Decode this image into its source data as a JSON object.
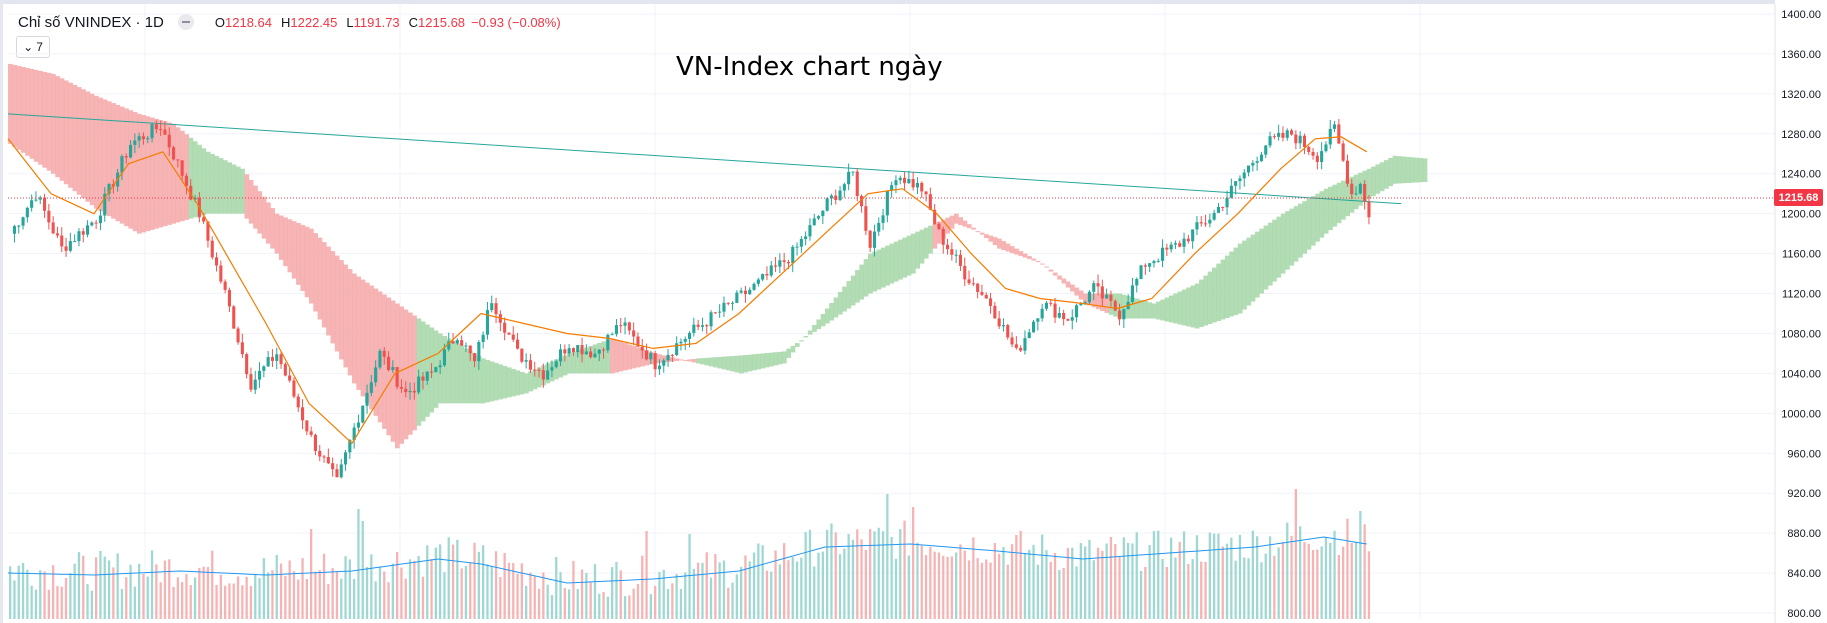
{
  "header": {
    "symbol_title": "Chỉ số VNINDEX · 1D",
    "open_label": "O",
    "open_value": "1218.64",
    "high_label": "H",
    "high_value": "1222.45",
    "low_label": "L",
    "low_value": "1191.73",
    "close_label": "C",
    "close_value": "1215.68",
    "change": "−0.93 (−0.08%)",
    "indicator_count": "7"
  },
  "colors": {
    "up": "#26a69a",
    "down": "#ef5350",
    "kumo_bull": "#a5d6a7",
    "kumo_bear": "#f4a7a7",
    "ma": "#f57c00",
    "trendline": "#26a69a",
    "volume_ma": "#2196f3"
  },
  "chart_data": {
    "type": "candlestick",
    "title": "VN-Index chart ngày",
    "ylim": [
      795,
      1410
    ],
    "y_ticks": [
      "1400.00",
      "1360.00",
      "1320.00",
      "1280.00",
      "1240.00",
      "1200.00",
      "1160.00",
      "1120.00",
      "1080.00",
      "1040.00",
      "1000.00",
      "960.00",
      "920.00",
      "880.00",
      "840.00",
      "800.00"
    ],
    "last_price": "1215.68",
    "num_bars": 258,
    "price_path": [
      [
        0,
        1180
      ],
      [
        6,
        1220
      ],
      [
        12,
        1165
      ],
      [
        20,
        1195
      ],
      [
        28,
        1270
      ],
      [
        35,
        1288
      ],
      [
        40,
        1240
      ],
      [
        44,
        1200
      ],
      [
        50,
        1120
      ],
      [
        56,
        1030
      ],
      [
        62,
        1060
      ],
      [
        70,
        975
      ],
      [
        76,
        930
      ],
      [
        80,
        985
      ],
      [
        86,
        1060
      ],
      [
        92,
        1020
      ],
      [
        98,
        1040
      ],
      [
        104,
        1080
      ],
      [
        108,
        1050
      ],
      [
        112,
        1115
      ],
      [
        118,
        1060
      ],
      [
        124,
        1040
      ],
      [
        130,
        1070
      ],
      [
        136,
        1060
      ],
      [
        142,
        1090
      ],
      [
        150,
        1050
      ],
      [
        158,
        1080
      ],
      [
        166,
        1105
      ],
      [
        174,
        1130
      ],
      [
        182,
        1160
      ],
      [
        190,
        1210
      ],
      [
        196,
        1240
      ],
      [
        200,
        1170
      ],
      [
        206,
        1240
      ],
      [
        212,
        1225
      ],
      [
        216,
        1180
      ],
      [
        222,
        1140
      ],
      [
        228,
        1110
      ],
      [
        234,
        1060
      ],
      [
        240,
        1110
      ],
      [
        246,
        1095
      ],
      [
        252,
        1125
      ],
      [
        258,
        1100
      ],
      [
        264,
        1150
      ],
      [
        272,
        1170
      ],
      [
        280,
        1200
      ],
      [
        286,
        1235
      ],
      [
        292,
        1270
      ],
      [
        298,
        1280
      ],
      [
        304,
        1258
      ],
      [
        308,
        1285
      ],
      [
        312,
        1220
      ],
      [
        314,
        1230
      ],
      [
        316,
        1200
      ]
    ],
    "ma_path": [
      [
        0,
        1275
      ],
      [
        10,
        1220
      ],
      [
        20,
        1200
      ],
      [
        28,
        1250
      ],
      [
        36,
        1262
      ],
      [
        44,
        1210
      ],
      [
        52,
        1150
      ],
      [
        60,
        1090
      ],
      [
        70,
        1010
      ],
      [
        80,
        970
      ],
      [
        90,
        1040
      ],
      [
        100,
        1060
      ],
      [
        110,
        1100
      ],
      [
        120,
        1090
      ],
      [
        130,
        1080
      ],
      [
        140,
        1075
      ],
      [
        150,
        1065
      ],
      [
        160,
        1070
      ],
      [
        170,
        1100
      ],
      [
        180,
        1140
      ],
      [
        190,
        1180
      ],
      [
        200,
        1220
      ],
      [
        208,
        1225
      ],
      [
        216,
        1200
      ],
      [
        224,
        1160
      ],
      [
        232,
        1125
      ],
      [
        240,
        1115
      ],
      [
        250,
        1110
      ],
      [
        258,
        1105
      ],
      [
        266,
        1115
      ],
      [
        276,
        1160
      ],
      [
        286,
        1200
      ],
      [
        296,
        1245
      ],
      [
        304,
        1275
      ],
      [
        310,
        1277
      ],
      [
        316,
        1262
      ]
    ],
    "trendline": [
      [
        0,
        1300
      ],
      [
        324,
        1210
      ]
    ],
    "kumo": {
      "upper": [
        [
          0,
          1350
        ],
        [
          10,
          1340
        ],
        [
          20,
          1318
        ],
        [
          30,
          1300
        ],
        [
          38,
          1290
        ],
        [
          46,
          1262
        ],
        [
          54,
          1245
        ],
        [
          62,
          1200
        ],
        [
          70,
          1185
        ],
        [
          80,
          1140
        ],
        [
          90,
          1110
        ],
        [
          100,
          1080
        ],
        [
          110,
          1055
        ],
        [
          120,
          1040
        ],
        [
          130,
          1060
        ],
        [
          140,
          1075
        ],
        [
          150,
          1060
        ],
        [
          160,
          1050
        ],
        [
          170,
          1040
        ],
        [
          180,
          1050
        ],
        [
          190,
          1105
        ],
        [
          200,
          1160
        ],
        [
          210,
          1180
        ],
        [
          220,
          1200
        ],
        [
          230,
          1165
        ],
        [
          240,
          1150
        ],
        [
          250,
          1120
        ],
        [
          258,
          1120
        ],
        [
          266,
          1110
        ],
        [
          276,
          1130
        ],
        [
          286,
          1170
        ],
        [
          296,
          1200
        ],
        [
          306,
          1225
        ],
        [
          316,
          1245
        ],
        [
          322,
          1258
        ],
        [
          330,
          1255
        ]
      ],
      "lower": [
        [
          0,
          1270
        ],
        [
          10,
          1240
        ],
        [
          20,
          1205
        ],
        [
          30,
          1180
        ],
        [
          38,
          1190
        ],
        [
          46,
          1200
        ],
        [
          54,
          1200
        ],
        [
          62,
          1160
        ],
        [
          70,
          1110
        ],
        [
          80,
          1030
        ],
        [
          90,
          965
        ],
        [
          100,
          1010
        ],
        [
          110,
          1010
        ],
        [
          120,
          1020
        ],
        [
          130,
          1040
        ],
        [
          140,
          1040
        ],
        [
          150,
          1050
        ],
        [
          160,
          1055
        ],
        [
          170,
          1058
        ],
        [
          180,
          1062
        ],
        [
          190,
          1090
        ],
        [
          200,
          1120
        ],
        [
          210,
          1140
        ],
        [
          220,
          1190
        ],
        [
          230,
          1175
        ],
        [
          240,
          1150
        ],
        [
          250,
          1110
        ],
        [
          258,
          1095
        ],
        [
          266,
          1095
        ],
        [
          276,
          1085
        ],
        [
          286,
          1100
        ],
        [
          296,
          1140
        ],
        [
          306,
          1180
        ],
        [
          316,
          1215
        ],
        [
          322,
          1230
        ],
        [
          330,
          1232
        ]
      ],
      "bull_ranges": [
        [
          42,
          55
        ],
        [
          95,
          140
        ],
        [
          160,
          215
        ],
        [
          256,
          330
        ]
      ]
    },
    "volume": {
      "baseline": 619,
      "ma_path": [
        [
          0,
          46
        ],
        [
          20,
          44
        ],
        [
          40,
          48
        ],
        [
          60,
          44
        ],
        [
          80,
          48
        ],
        [
          100,
          60
        ],
        [
          110,
          55
        ],
        [
          130,
          36
        ],
        [
          150,
          40
        ],
        [
          170,
          48
        ],
        [
          190,
          72
        ],
        [
          210,
          75
        ],
        [
          230,
          68
        ],
        [
          250,
          60
        ],
        [
          270,
          66
        ],
        [
          290,
          72
        ],
        [
          306,
          82
        ],
        [
          316,
          75
        ]
      ],
      "spikes": [
        [
          70,
          90
        ],
        [
          81,
          110
        ],
        [
          82,
          98
        ],
        [
          148,
          88
        ],
        [
          158,
          85
        ],
        [
          204,
          125
        ],
        [
          210,
          112
        ],
        [
          299,
          130
        ],
        [
          314,
          108
        ]
      ]
    }
  }
}
